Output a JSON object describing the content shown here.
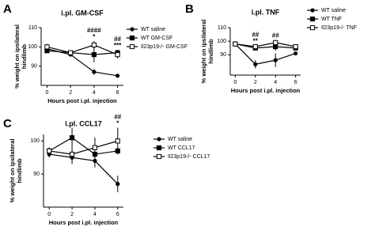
{
  "chart_data": [
    {
      "type": "line",
      "panel": "A",
      "title": "i.pl. GM-CSF",
      "xlabel": "Hours post i.pl. injection",
      "ylabel": [
        "% weight on ipsilateral",
        "hindlimb"
      ],
      "x": [
        0,
        2,
        4,
        6
      ],
      "xlim": [
        -0.5,
        6.5
      ],
      "xticks": [
        0,
        2,
        4,
        6
      ],
      "ylim": [
        80,
        110
      ],
      "yticks": [
        90,
        100,
        110
      ],
      "series": [
        {
          "name": "WT saline",
          "color": "#000000",
          "marker": "circle",
          "values": [
            99,
            96,
            87,
            85
          ],
          "errors": [
            1,
            1,
            1.5,
            1
          ]
        },
        {
          "name": "WT GM-CSF",
          "color": "#000000",
          "marker": "square",
          "values": [
            98,
            97,
            96,
            97
          ],
          "errors": [
            1,
            1,
            4,
            1.5
          ]
        },
        {
          "name": "Il23p19-/- GM-CSF",
          "color": "#000000",
          "marker": "open-square",
          "values": [
            100,
            97,
            101,
            96
          ],
          "errors": [
            1.5,
            1,
            2,
            2
          ]
        }
      ],
      "annotations": [
        {
          "x": 4,
          "text": "####"
        },
        {
          "x": 4,
          "text": "*"
        },
        {
          "x": 6,
          "text": "##"
        },
        {
          "x": 6,
          "text": "***"
        }
      ]
    },
    {
      "type": "line",
      "panel": "B",
      "title": "i.pl. TNF",
      "xlabel": "Hours post i.pl. injection",
      "ylabel": [
        "% weight on ipsilateral",
        "hindlimb"
      ],
      "x": [
        0,
        2,
        4,
        6
      ],
      "xlim": [
        -0.5,
        6.5
      ],
      "xticks": [
        0,
        2,
        4,
        6
      ],
      "ylim": [
        75,
        110
      ],
      "yticks": [
        90,
        100,
        110
      ],
      "series": [
        {
          "name": "WT saline",
          "color": "#000000",
          "marker": "circle",
          "values": [
            98,
            83,
            86,
            91
          ],
          "errors": [
            2,
            3,
            5,
            1
          ]
        },
        {
          "name": "WT TNF",
          "color": "#000000",
          "marker": "square",
          "values": [
            98,
            95,
            96,
            95
          ],
          "errors": [
            1,
            1,
            3,
            1
          ]
        },
        {
          "name": "Il23p19-/- TNF",
          "color": "#000000",
          "marker": "open-square",
          "values": [
            98,
            96,
            99,
            96
          ],
          "errors": [
            2,
            1,
            2,
            1
          ]
        }
      ],
      "annotations": [
        {
          "x": 2,
          "text": "##"
        },
        {
          "x": 2,
          "text": "**"
        },
        {
          "x": 4,
          "text": "##"
        }
      ]
    },
    {
      "type": "line",
      "panel": "C",
      "title": "i.pl. CCL17",
      "xlabel": "Hours post i.pl. injection",
      "ylabel": [
        "% weight on ipsilateral",
        "hindlimb"
      ],
      "x": [
        0,
        2,
        4,
        6
      ],
      "xlim": [
        -0.5,
        6.5
      ],
      "xticks": [
        0,
        2,
        4,
        6
      ],
      "ylim": [
        80,
        102
      ],
      "yticks": [
        90,
        100
      ],
      "series": [
        {
          "name": "WT saline",
          "color": "#000000",
          "marker": "circle",
          "values": [
            96,
            95,
            94,
            87
          ],
          "errors": [
            1,
            2,
            2,
            2.5
          ]
        },
        {
          "name": "WT CCL17",
          "color": "#000000",
          "marker": "square",
          "values": [
            97,
            101,
            96,
            97
          ],
          "errors": [
            1,
            3,
            2,
            1
          ]
        },
        {
          "name": "Il23p19-/- CCL17",
          "color": "#000000",
          "marker": "open-square",
          "values": [
            97,
            96,
            98,
            100
          ],
          "errors": [
            1,
            2,
            3,
            4
          ]
        }
      ],
      "annotations": [
        {
          "x": 6,
          "text": "##"
        },
        {
          "x": 6,
          "text": "*"
        }
      ]
    }
  ]
}
